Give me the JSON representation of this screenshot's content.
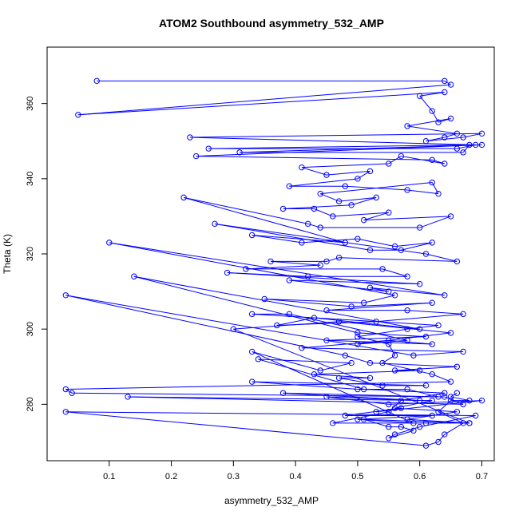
{
  "chart_data": {
    "type": "line",
    "title": "ATOM2 Southbound asymmetry_532_AMP",
    "xlabel": "asymmetry_532_AMP",
    "ylabel": "Theta (K)",
    "xlim": [
      0.0,
      0.72
    ],
    "ylim": [
      265,
      375
    ],
    "x_ticks": [
      "0.1",
      "0.2",
      "0.3",
      "0.4",
      "0.5",
      "0.6",
      "0.7"
    ],
    "y_ticks": [
      "280",
      "300",
      "320",
      "340",
      "360"
    ],
    "series_color": "#0000ff",
    "marker": "open-circle",
    "series": [
      {
        "x": [
          0.08,
          0.64,
          0.65,
          0.05,
          0.64,
          0.6,
          0.62,
          0.63,
          0.65,
          0.58,
          0.66,
          0.64,
          0.61,
          0.67,
          0.7,
          0.23,
          0.69,
          0.66,
          0.26,
          0.68,
          0.67,
          0.31,
          0.7,
          0.24,
          0.62,
          0.64,
          0.57,
          0.55,
          0.41,
          0.45,
          0.52,
          0.5,
          0.39,
          0.48,
          0.58,
          0.63,
          0.62,
          0.44,
          0.47,
          0.53,
          0.49,
          0.38,
          0.43,
          0.46,
          0.55,
          0.51,
          0.65,
          0.6,
          0.44,
          0.42,
          0.22,
          0.48,
          0.33,
          0.41,
          0.5,
          0.56,
          0.62,
          0.57,
          0.52,
          0.27,
          0.61,
          0.66,
          0.47,
          0.45,
          0.36,
          0.44,
          0.32,
          0.54,
          0.58,
          0.42,
          0.29,
          0.6,
          0.39,
          0.55,
          0.52,
          0.64,
          0.1,
          0.56,
          0.51,
          0.35,
          0.49,
          0.62,
          0.45,
          0.58,
          0.67,
          0.53,
          0.37,
          0.43,
          0.6,
          0.14,
          0.5,
          0.61,
          0.45,
          0.62,
          0.55,
          0.41,
          0.67,
          0.59,
          0.03,
          0.48,
          0.52,
          0.66,
          0.56,
          0.6,
          0.43,
          0.52,
          0.47,
          0.54,
          0.61,
          0.33,
          0.5,
          0.58,
          0.63,
          0.38,
          0.6,
          0.45,
          0.55,
          0.7,
          0.53,
          0.57,
          0.48,
          0.62,
          0.5,
          0.59,
          0.33,
          0.44,
          0.49,
          0.34,
          0.51,
          0.64,
          0.57,
          0.55,
          0.46,
          0.61,
          0.68,
          0.3,
          0.47,
          0.65,
          0.5,
          0.58,
          0.39,
          0.33,
          0.63,
          0.58,
          0.5,
          0.55,
          0.56,
          0.54,
          0.62,
          0.65,
          0.03,
          0.04,
          0.64,
          0.67,
          0.13,
          0.62,
          0.56,
          0.66,
          0.58,
          0.68,
          0.51,
          0.55,
          0.57,
          0.59,
          0.55,
          0.56,
          0.6,
          0.69,
          0.03,
          0.61,
          0.63,
          0.64,
          0.67,
          0.63,
          0.65,
          0.68,
          0.65,
          0.66
        ],
        "y": [
          366,
          366,
          365,
          357,
          363,
          362,
          358,
          355,
          356,
          354,
          352,
          351,
          350,
          351,
          352,
          351,
          349,
          348,
          348,
          349,
          347,
          347,
          349,
          346,
          345,
          344,
          346,
          344,
          343,
          341,
          342,
          340,
          338,
          338,
          337,
          336,
          339,
          336,
          334,
          335,
          333,
          332,
          332,
          330,
          331,
          329,
          330,
          327,
          327,
          328,
          335,
          323,
          325,
          323,
          324,
          322,
          323,
          321,
          321,
          328,
          320,
          318,
          319,
          318,
          318,
          317,
          316,
          316,
          314,
          314,
          315,
          312,
          313,
          310,
          311,
          309,
          323,
          309,
          307,
          308,
          306,
          307,
          305,
          305,
          304,
          302,
          301,
          303,
          300,
          314,
          299,
          298,
          297,
          296,
          297,
          295,
          294,
          293,
          309,
          293,
          291,
          290,
          289,
          289,
          288,
          287,
          287,
          285,
          285,
          286,
          284,
          284,
          282,
          283,
          281,
          282,
          280,
          281,
          278,
          279,
          277,
          277,
          276,
          275,
          294,
          289,
          291,
          292,
          284,
          283,
          281,
          278,
          275,
          275,
          275,
          300,
          302,
          299,
          296,
          297,
          304,
          304,
          301,
          300,
          298,
          296,
          293,
          291,
          288,
          286,
          284,
          283,
          282,
          280,
          282,
          281,
          279,
          278,
          276,
          275,
          276,
          274,
          274,
          273,
          271,
          272,
          274,
          277,
          278,
          269,
          270,
          272,
          275,
          278,
          281,
          281,
          282,
          283
        ]
      }
    ]
  }
}
